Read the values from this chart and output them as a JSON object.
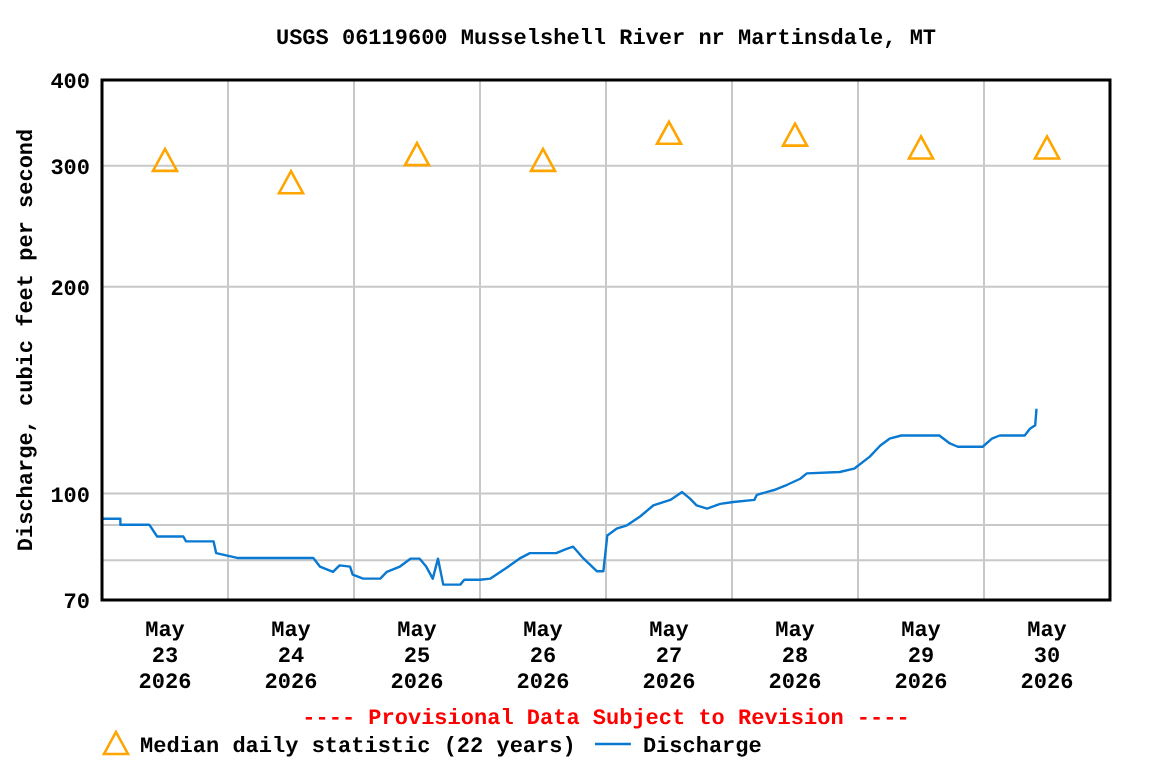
{
  "chart_data": {
    "type": "line",
    "title": "USGS 06119600 Musselshell River nr Martinsdale, MT",
    "ylabel": "Discharge, cubic feet per second",
    "annotations": [
      "---- Provisional Data Subject to Revision ----"
    ],
    "log": "y",
    "grid": true,
    "legend": "bottom",
    "xlim": [
      "2026-05-23T00:00",
      "2026-05-31T00:00"
    ],
    "xticks": [
      {
        "value": "2026-05-23T12:00",
        "label": "May\n23\n2026"
      },
      {
        "value": "2026-05-24T00:00",
        "label": null
      },
      {
        "value": "2026-05-24T12:00",
        "label": "May\n24\n2026"
      },
      {
        "value": "2026-05-25T00:00",
        "label": null
      },
      {
        "value": "2026-05-25T12:00",
        "label": "May\n25\n2026"
      },
      {
        "value": "2026-05-26T00:00",
        "label": null
      },
      {
        "value": "2026-05-26T12:00",
        "label": "May\n26\n2026"
      },
      {
        "value": "2026-05-27T00:00",
        "label": null
      },
      {
        "value": "2026-05-27T12:00",
        "label": "May\n27\n2026"
      },
      {
        "value": "2026-05-28T00:00",
        "label": null
      },
      {
        "value": "2026-05-28T12:00",
        "label": "May\n28\n2026"
      },
      {
        "value": "2026-05-29T00:00",
        "label": null
      },
      {
        "value": "2026-05-29T12:00",
        "label": "May\n29\n2026"
      },
      {
        "value": "2026-05-30T00:00",
        "label": null
      },
      {
        "value": "2026-05-30T12:00",
        "label": "May\n30\n2026"
      }
    ],
    "ylim": [
      70,
      400
    ],
    "yticks": [
      70,
      {
        "value": 80,
        "label": null
      },
      {
        "value": 90,
        "label": null
      },
      100,
      200,
      300,
      400
    ],
    "series": [
      {
        "name": "Median daily statistic (22 years)",
        "type": "scatter",
        "marker": "triangle",
        "color": "#ffa500",
        "x": [
          "2026-05-23T12:00",
          "2026-05-24T12:00",
          "2026-05-25T12:00",
          "2026-05-26T12:00",
          "2026-05-27T12:00",
          "2026-05-28T12:00",
          "2026-05-29T12:00",
          "2026-05-30T12:00"
        ],
        "values": [
          305,
          283,
          311,
          305,
          334,
          332,
          318,
          318
        ]
      },
      {
        "name": "Discharge",
        "marker": "none",
        "line_style": "solid",
        "color": "#0a79d1",
        "x": [
          "2026-05-23T00:00",
          "2026-05-23T03:30",
          "2026-05-23T03:30",
          "2026-05-23T09:00",
          "2026-05-23T10:30",
          "2026-05-23T15:30",
          "2026-05-23T16:00",
          "2026-05-23T21:15",
          "2026-05-23T21:45",
          "2026-05-24T01:45",
          "2026-05-24T16:15",
          "2026-05-24T17:30",
          "2026-05-24T20:00",
          "2026-05-24T21:15",
          "2026-05-24T23:15",
          "2026-05-24T23:45",
          "2026-05-25T01:45",
          "2026-05-25T05:00",
          "2026-05-25T06:15",
          "2026-05-25T08:45",
          "2026-05-25T10:45",
          "2026-05-25T12:30",
          "2026-05-25T13:45",
          "2026-05-25T15:00",
          "2026-05-25T16:00",
          "2026-05-25T17:00",
          "2026-05-25T20:15",
          "2026-05-25T21:00",
          "2026-05-26T00:00",
          "2026-05-26T02:00",
          "2026-05-26T05:00",
          "2026-05-26T07:30",
          "2026-05-26T09:30",
          "2026-05-26T14:30",
          "2026-05-26T16:30",
          "2026-05-26T17:45",
          "2026-05-26T19:45",
          "2026-05-26T22:15",
          "2026-05-26T23:30",
          "2026-05-27T00:15",
          "2026-05-27T02:00",
          "2026-05-27T04:00",
          "2026-05-27T06:30",
          "2026-05-27T09:00",
          "2026-05-27T12:15",
          "2026-05-27T14:30",
          "2026-05-27T16:00",
          "2026-05-27T17:15",
          "2026-05-27T19:15",
          "2026-05-27T21:45",
          "2026-05-28T00:15",
          "2026-05-28T04:15",
          "2026-05-28T04:45",
          "2026-05-28T08:00",
          "2026-05-28T10:30",
          "2026-05-28T13:00",
          "2026-05-28T14:15",
          "2026-05-28T20:30",
          "2026-05-28T23:15",
          "2026-05-29T02:15",
          "2026-05-29T04:15",
          "2026-05-29T06:00",
          "2026-05-29T08:15",
          "2026-05-29T15:30",
          "2026-05-29T17:30",
          "2026-05-29T19:00",
          "2026-05-29T23:45",
          "2026-05-30T01:30",
          "2026-05-30T03:00",
          "2026-05-30T07:45",
          "2026-05-30T08:45",
          "2026-05-30T09:45",
          "2026-05-30T10:00"
        ],
        "values": [
          91.9,
          91.9,
          90.1,
          90.1,
          86.6,
          86.6,
          85.2,
          85.2,
          81.9,
          80.6,
          80.6,
          78.3,
          76.9,
          78.6,
          78.3,
          76.2,
          75.2,
          75.2,
          76.9,
          78.3,
          80.4,
          80.4,
          78.3,
          75.2,
          80.4,
          73.7,
          73.7,
          74.9,
          74.9,
          75.2,
          77.9,
          80.4,
          81.9,
          81.9,
          83.1,
          83.7,
          80.4,
          77.1,
          77.1,
          86.9,
          88.9,
          89.9,
          92.6,
          96.1,
          97.9,
          100.5,
          98.3,
          96.1,
          95.1,
          96.6,
          97.2,
          97.9,
          99.6,
          101.2,
          103.0,
          105.1,
          107.0,
          107.5,
          108.7,
          113.2,
          117.5,
          120.2,
          121.5,
          121.5,
          118.3,
          117.0,
          117.0,
          120.2,
          121.5,
          121.5,
          124.3,
          125.7,
          132.9
        ]
      }
    ]
  }
}
